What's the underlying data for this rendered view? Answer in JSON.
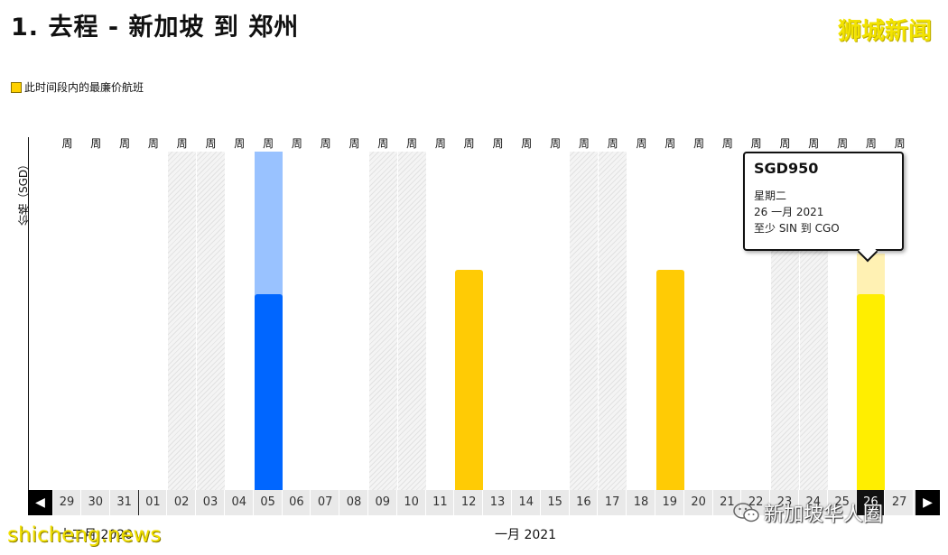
{
  "title": "1. 去程 - 新加坡 到 郑州",
  "watermark_top": "狮城新闻",
  "legend_label": "此时间段内的最廉价航班",
  "y_axis_label": "价格（SGD）",
  "weekday_label": "周",
  "dates": [
    "29",
    "30",
    "31",
    "01",
    "02",
    "03",
    "04",
    "05",
    "06",
    "07",
    "08",
    "09",
    "10",
    "11",
    "12",
    "13",
    "14",
    "15",
    "16",
    "17",
    "18",
    "19",
    "20",
    "21",
    "22",
    "23",
    "24",
    "25",
    "26",
    "27"
  ],
  "selected_date_index": 28,
  "months": {
    "dec": "十二月 2020",
    "jan": "一月 2021"
  },
  "tooltip": {
    "price": "SGD950",
    "weekday": "星期二",
    "date": "26 一月 2021",
    "route": "至少 SIN 到 CGO"
  },
  "watermarks": {
    "bottom_left": "shicheng.news",
    "bottom_right": "新加坡华人圈"
  },
  "colors": {
    "blue_dark": "#0066ff",
    "blue_light": "#99c2ff",
    "yellow": "#ffcb05",
    "yellow_selected": "#ffee00",
    "yellow_selected_light": "#fff1b3"
  },
  "chart_data": {
    "type": "bar",
    "categories": [
      "29",
      "30",
      "31",
      "01",
      "02",
      "03",
      "04",
      "05",
      "06",
      "07",
      "08",
      "09",
      "10",
      "11",
      "12",
      "13",
      "14",
      "15",
      "16",
      "17",
      "18",
      "19",
      "20",
      "21",
      "22",
      "23",
      "24",
      "25",
      "26",
      "27"
    ],
    "series": [
      {
        "values": [
          null,
          null,
          null,
          null,
          null,
          null,
          null,
          0.58,
          null,
          null,
          null,
          null,
          null,
          null,
          0.65,
          null,
          null,
          null,
          null,
          null,
          null,
          0.65,
          null,
          null,
          null,
          null,
          null,
          null,
          0.58,
          null
        ]
      }
    ],
    "bar_extensions": {
      "05": 1.0,
      "26": 0.7
    },
    "hatched_days": [
      "02",
      "03",
      "09",
      "10",
      "16",
      "17",
      "23",
      "24"
    ],
    "highlighted": {
      "05": "blue",
      "12": "yellow",
      "19": "yellow",
      "26": "yellow-selected"
    }
  }
}
